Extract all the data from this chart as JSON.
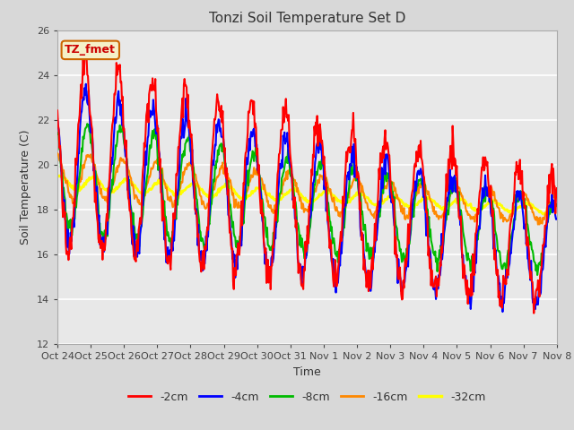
{
  "title": "Tonzi Soil Temperature Set D",
  "xlabel": "Time",
  "ylabel": "Soil Temperature (C)",
  "ylim": [
    12,
    26
  ],
  "yticks": [
    12,
    14,
    16,
    18,
    20,
    22,
    24,
    26
  ],
  "xtick_labels": [
    "Oct 24",
    "Oct 25",
    "Oct 26",
    "Oct 27",
    "Oct 28",
    "Oct 29",
    "Oct 30",
    "Oct 31",
    "Nov 1",
    "Nov 2",
    "Nov 3",
    "Nov 4",
    "Nov 5",
    "Nov 6",
    "Nov 7",
    "Nov 8"
  ],
  "annotation_text": "TZ_fmet",
  "annotation_color": "#cc0000",
  "annotation_bg": "#f5f0c8",
  "annotation_border": "#cc6600",
  "line_colors": {
    "-2cm": "#ff0000",
    "-4cm": "#0000ff",
    "-8cm": "#00bb00",
    "-16cm": "#ff8800",
    "-32cm": "#ffff00"
  },
  "bg_color": "#e8e8e8",
  "grid_color": "#ffffff",
  "num_days": 15,
  "points_per_day": 48
}
